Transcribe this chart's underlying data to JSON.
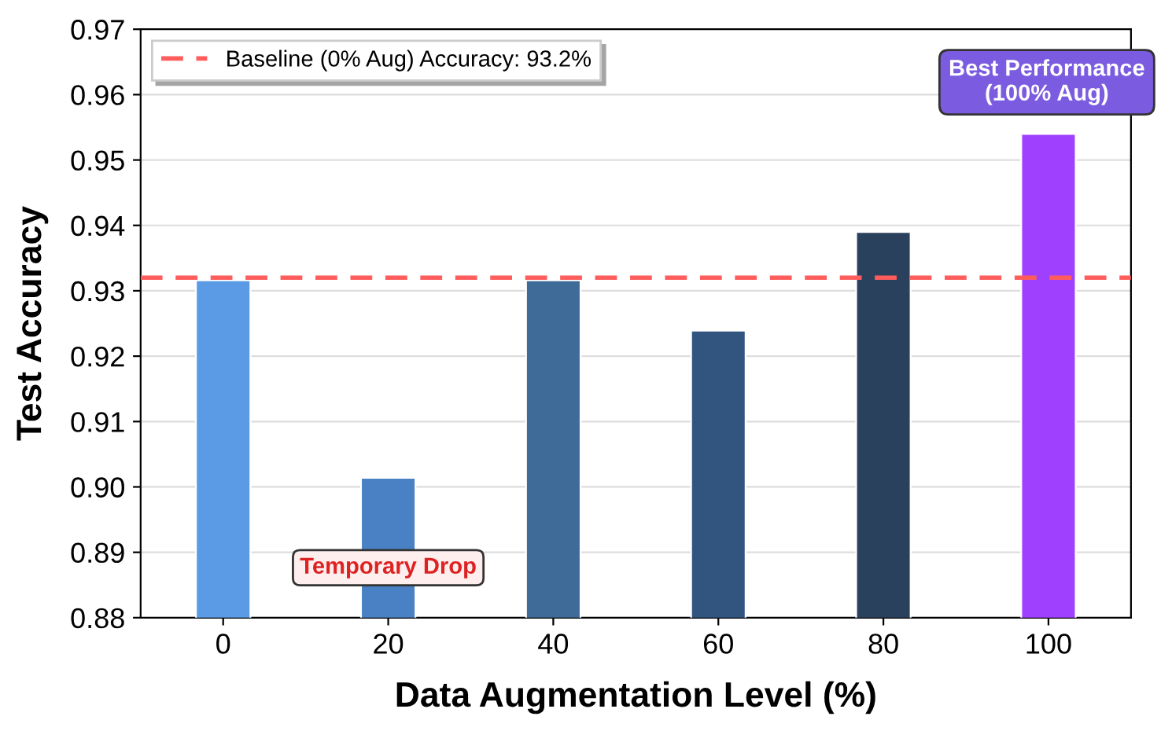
{
  "chart_data": {
    "type": "bar",
    "xlabel": "Data Augmentation Level (%)",
    "ylabel": "Test Accuracy",
    "categories": [
      "0",
      "20",
      "40",
      "60",
      "80",
      "100"
    ],
    "values": [
      0.9316,
      0.9014,
      0.9316,
      0.9239,
      0.939,
      0.954
    ],
    "colors": [
      "#5b9be6",
      "#4a80c4",
      "#3f6b99",
      "#325580",
      "#2a415d",
      "#a040ff"
    ],
    "ylim": [
      0.88,
      0.97
    ],
    "yticks": [
      0.88,
      0.89,
      {
        "value": 0.9,
        "label": "0.90"
      },
      0.91,
      0.92,
      0.93,
      0.94,
      0.95,
      0.96,
      0.97
    ],
    "ref_lines": [
      {
        "axis": "y",
        "value": 0.932,
        "label": "Baseline (0% Aug) Accuracy: 93.2%",
        "color": "#ff5c5c",
        "line_style": "dashed"
      }
    ],
    "annotations": [
      "Temporary Drop",
      "Best Performance\n(100% Aug)"
    ],
    "grid": "y",
    "legend": "top left"
  }
}
